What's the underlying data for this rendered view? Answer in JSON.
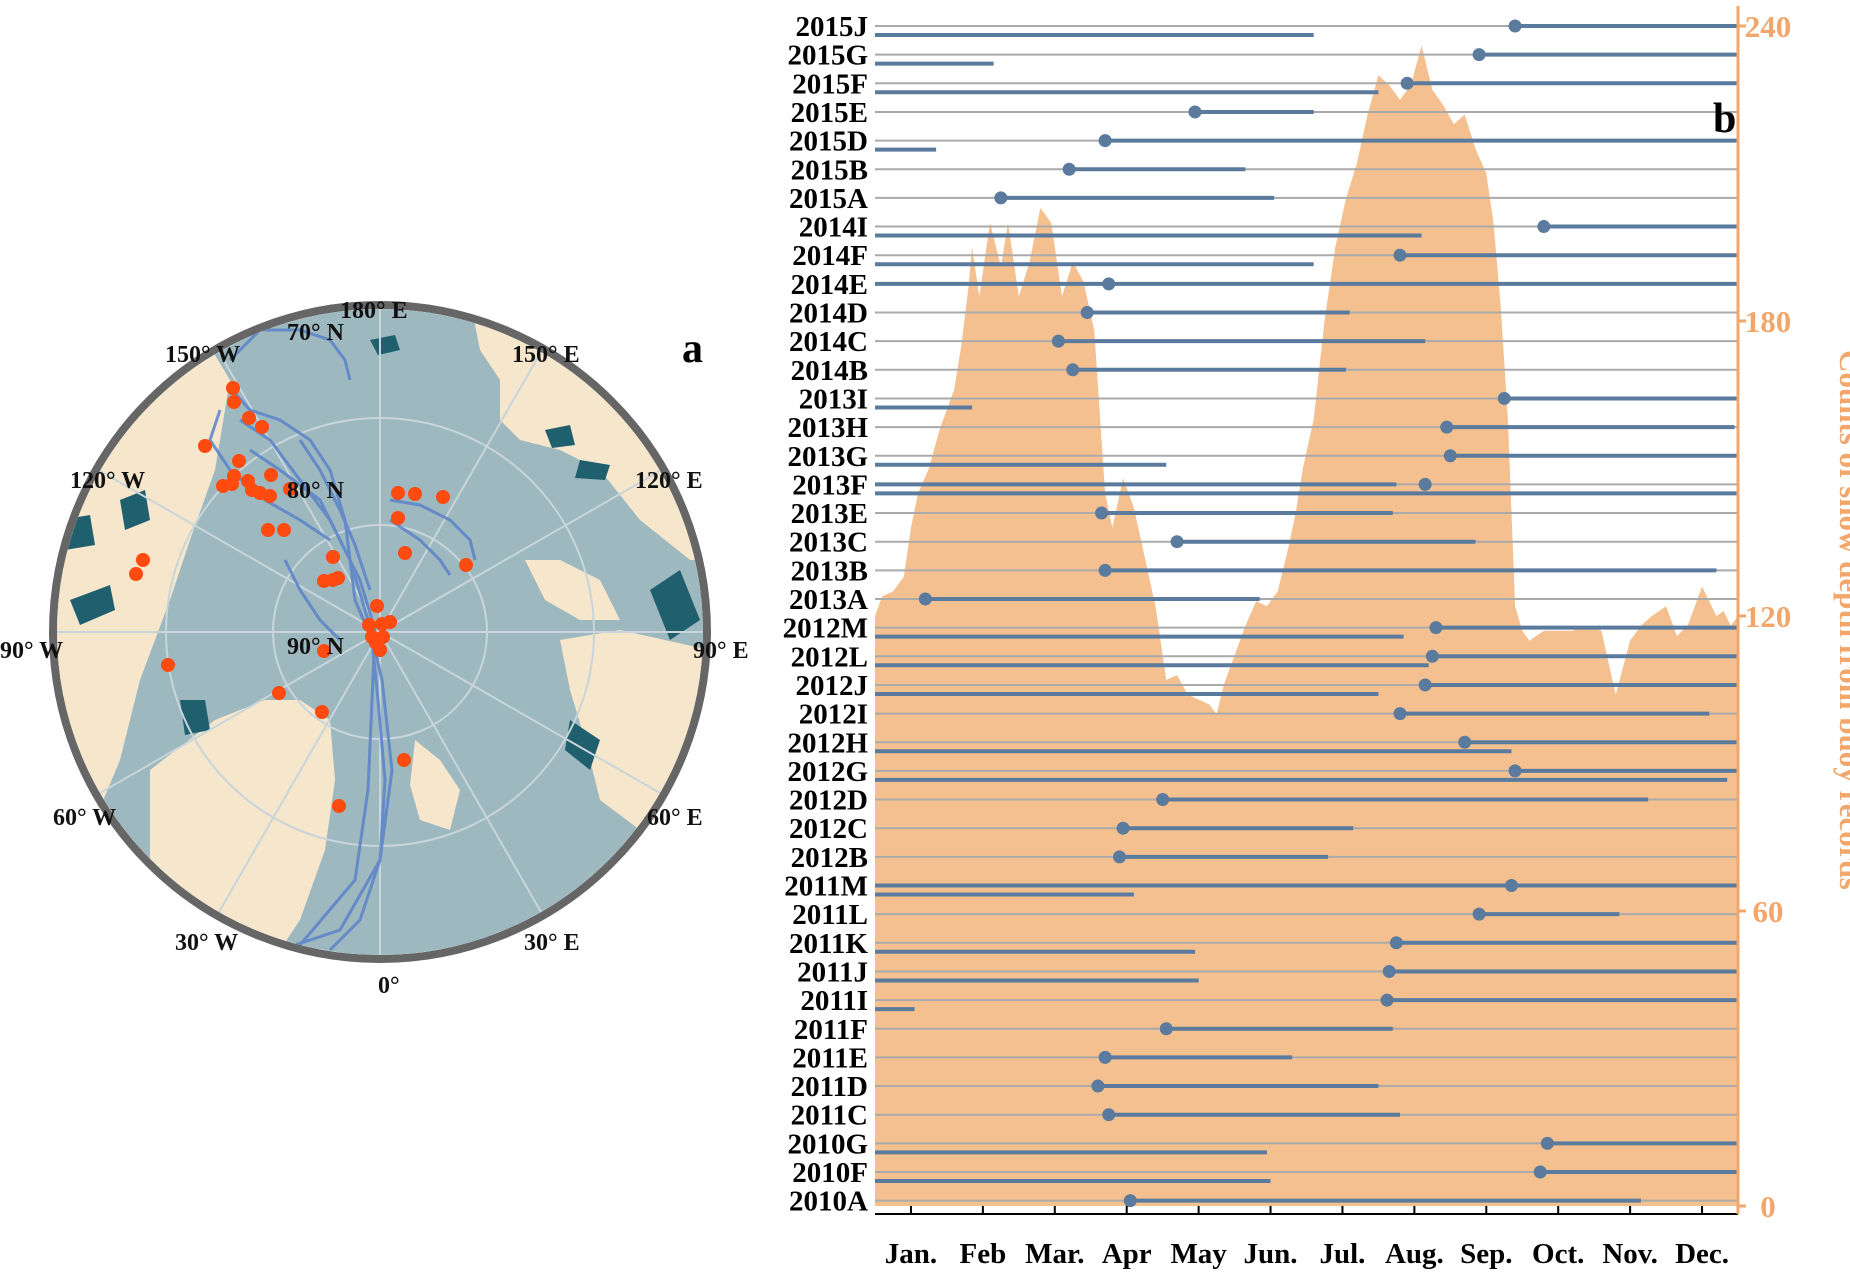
{
  "panel_a": {
    "label": "a",
    "labels": {
      "deg180": "180° E",
      "deg150w": "150° W",
      "deg150e": "150° E",
      "deg120w": "120° W",
      "deg120e": "120° E",
      "deg90w": "90° W",
      "deg90e": "90° E",
      "deg60w": "60° W",
      "deg60e": "60° E",
      "deg30w": "30° W",
      "deg30e": "30° E",
      "deg0": "0°",
      "lat70": "70° N",
      "lat80": "80° N",
      "lat90": "90° N"
    },
    "colors": {
      "ocean": "#9DB8BF",
      "land": "#F5E6CC",
      "ice": "#1F5F6E",
      "track": "#5B82C9",
      "start": "#FF4A10",
      "rim": "#666666"
    }
  },
  "panel_b": {
    "label": "b",
    "colors": {
      "area": "#F5C090",
      "bar": "#5A7A9E",
      "grid": "#AAAAAA",
      "axis_right": "#F2A66A"
    }
  },
  "chart_data": [
    {
      "type": "timeline",
      "title": "",
      "xlabel": "",
      "ylabel": "",
      "months": [
        "Jan.",
        "Feb",
        "Mar.",
        "Apr",
        "May",
        "Jun.",
        "Jul.",
        "Aug.",
        "Sep.",
        "Oct.",
        "Nov.",
        "Dec."
      ],
      "xlim": [
        0,
        12
      ],
      "buoys": [
        {
          "name": "2015J",
          "segments": [
            [
              0,
              6.1
            ],
            [
              8.9,
              12
            ]
          ],
          "start": 8.9
        },
        {
          "name": "2015G",
          "segments": [
            [
              0,
              1.65
            ],
            [
              8.4,
              12
            ]
          ],
          "start": 8.4
        },
        {
          "name": "2015F",
          "segments": [
            [
              0,
              7.0
            ],
            [
              7.4,
              12
            ]
          ],
          "start": 7.4
        },
        {
          "name": "2015E",
          "segments": [
            [
              4.45,
              6.1
            ]
          ],
          "start": 4.45
        },
        {
          "name": "2015D",
          "segments": [
            [
              0,
              0.85
            ],
            [
              3.2,
              12
            ]
          ],
          "start": 3.2
        },
        {
          "name": "2015B",
          "segments": [
            [
              2.7,
              5.15
            ]
          ],
          "start": 2.7
        },
        {
          "name": "2015A",
          "segments": [
            [
              1.75,
              5.55
            ]
          ],
          "start": 1.75
        },
        {
          "name": "2014I",
          "segments": [
            [
              0,
              7.6
            ],
            [
              9.3,
              12
            ]
          ],
          "start": 9.3
        },
        {
          "name": "2014F",
          "segments": [
            [
              0,
              6.1
            ],
            [
              7.3,
              12
            ]
          ],
          "start": 7.3
        },
        {
          "name": "2014E",
          "segments": [
            [
              0,
              12
            ]
          ],
          "start": 3.25
        },
        {
          "name": "2014D",
          "segments": [
            [
              2.95,
              6.6
            ]
          ],
          "start": 2.95
        },
        {
          "name": "2014C",
          "segments": [
            [
              2.55,
              7.65
            ]
          ],
          "start": 2.55
        },
        {
          "name": "2014B",
          "segments": [
            [
              2.75,
              6.55
            ]
          ],
          "start": 2.75
        },
        {
          "name": "2013I",
          "segments": [
            [
              0,
              1.35
            ],
            [
              8.75,
              12
            ]
          ],
          "start": 8.75
        },
        {
          "name": "2013H",
          "segments": [
            [
              7.95,
              11.95
            ]
          ],
          "start": 7.95
        },
        {
          "name": "2013G",
          "segments": [
            [
              0,
              4.05
            ],
            [
              8.0,
              12
            ]
          ],
          "start": 8.0
        },
        {
          "name": "2013F",
          "segments": [
            [
              0,
              12
            ],
            [
              0,
              7.25
            ]
          ],
          "start": 7.65
        },
        {
          "name": "2013E",
          "segments": [
            [
              3.15,
              7.2
            ]
          ],
          "start": 3.15
        },
        {
          "name": "2013C",
          "segments": [
            [
              4.2,
              8.35
            ]
          ],
          "start": 4.2
        },
        {
          "name": "2013B",
          "segments": [
            [
              3.2,
              11.7
            ]
          ],
          "start": 3.2
        },
        {
          "name": "2013A",
          "segments": [
            [
              0.7,
              5.35
            ]
          ],
          "start": 0.7
        },
        {
          "name": "2012M",
          "segments": [
            [
              0,
              7.35
            ],
            [
              7.8,
              12
            ]
          ],
          "start": 7.8
        },
        {
          "name": "2012L",
          "segments": [
            [
              0,
              7.7
            ],
            [
              7.75,
              12
            ]
          ],
          "start": 7.75
        },
        {
          "name": "2012J",
          "segments": [
            [
              0,
              7.0
            ],
            [
              7.65,
              12
            ]
          ],
          "start": 7.65
        },
        {
          "name": "2012I",
          "segments": [
            [
              7.3,
              11.6
            ]
          ],
          "start": 7.3
        },
        {
          "name": "2012H",
          "segments": [
            [
              0,
              8.85
            ],
            [
              8.2,
              12
            ]
          ],
          "start": 8.2
        },
        {
          "name": "2012G",
          "segments": [
            [
              0,
              11.85
            ],
            [
              8.9,
              12
            ]
          ],
          "start": 8.9
        },
        {
          "name": "2012D",
          "segments": [
            [
              4.0,
              10.75
            ]
          ],
          "start": 4.0
        },
        {
          "name": "2012C",
          "segments": [
            [
              3.45,
              6.65
            ]
          ],
          "start": 3.45
        },
        {
          "name": "2012B",
          "segments": [
            [
              3.4,
              6.3
            ]
          ],
          "start": 3.4
        },
        {
          "name": "2011M",
          "segments": [
            [
              0,
              3.6
            ],
            [
              0,
              12
            ]
          ],
          "start": 8.85
        },
        {
          "name": "2011L",
          "segments": [
            [
              8.4,
              10.35
            ]
          ],
          "start": 8.4
        },
        {
          "name": "2011K",
          "segments": [
            [
              0,
              4.45
            ],
            [
              7.25,
              12
            ]
          ],
          "start": 7.25
        },
        {
          "name": "2011J",
          "segments": [
            [
              0,
              4.5
            ],
            [
              7.15,
              12
            ]
          ],
          "start": 7.15
        },
        {
          "name": "2011I",
          "segments": [
            [
              0,
              0.55
            ],
            [
              7.12,
              12
            ]
          ],
          "start": 7.12
        },
        {
          "name": "2011F",
          "segments": [
            [
              4.05,
              7.2
            ]
          ],
          "start": 4.05
        },
        {
          "name": "2011E",
          "segments": [
            [
              3.2,
              5.8
            ]
          ],
          "start": 3.2
        },
        {
          "name": "2011D",
          "segments": [
            [
              3.1,
              7.0
            ]
          ],
          "start": 3.1
        },
        {
          "name": "2011C",
          "segments": [
            [
              3.25,
              7.3
            ]
          ],
          "start": 3.25
        },
        {
          "name": "2010G",
          "segments": [
            [
              0,
              5.45
            ],
            [
              9.35,
              12
            ]
          ],
          "start": 9.35
        },
        {
          "name": "2010F",
          "segments": [
            [
              0,
              5.5
            ],
            [
              9.25,
              12
            ]
          ],
          "start": 9.25
        },
        {
          "name": "2010A",
          "segments": [
            [
              3.55,
              10.65
            ]
          ],
          "start": 3.55
        }
      ]
    },
    {
      "type": "area",
      "title": "",
      "xlabel": "",
      "ylabel": "Counts of snow depth from buoy records",
      "ylim": [
        0,
        240
      ],
      "yticks": [
        0,
        60,
        120,
        180,
        240
      ],
      "x": [
        0,
        0.1,
        0.25,
        0.4,
        0.5,
        0.6,
        0.75,
        0.9,
        1.0,
        1.1,
        1.2,
        1.3,
        1.35,
        1.45,
        1.6,
        1.75,
        1.85,
        2.0,
        2.15,
        2.3,
        2.45,
        2.6,
        2.75,
        2.9,
        3.05,
        3.2,
        3.3,
        3.45,
        3.6,
        3.75,
        3.9,
        4.05,
        4.2,
        4.35,
        4.5,
        4.65,
        4.75,
        4.85,
        5.0,
        5.15,
        5.3,
        5.45,
        5.6,
        5.75,
        5.85,
        5.95,
        6.1,
        6.25,
        6.4,
        6.55,
        6.7,
        6.85,
        7.0,
        7.15,
        7.3,
        7.45,
        7.6,
        7.75,
        7.9,
        8.05,
        8.2,
        8.35,
        8.5,
        8.6,
        8.7,
        8.8,
        8.9,
        9.0,
        9.1,
        9.3,
        9.5,
        9.7,
        9.9,
        10.1,
        10.3,
        10.5,
        10.65,
        10.8,
        11.0,
        11.15,
        11.3,
        11.5,
        11.6,
        11.7,
        11.8,
        11.9,
        12.0
      ],
      "values": [
        120,
        124,
        125,
        128,
        138,
        145,
        150,
        158,
        162,
        166,
        175,
        187,
        195,
        185,
        200,
        191,
        200,
        185,
        192,
        203,
        200,
        185,
        192,
        188,
        178,
        145,
        138,
        148,
        142,
        132,
        122,
        107,
        108,
        104,
        103,
        102,
        100,
        106,
        112,
        118,
        123,
        122,
        125,
        134,
        141,
        150,
        160,
        180,
        195,
        205,
        212,
        222,
        230,
        228,
        225,
        228,
        236,
        227,
        224,
        220,
        222,
        215,
        210,
        200,
        183,
        160,
        122,
        117,
        115,
        117,
        117,
        117,
        118,
        117,
        104,
        115,
        118,
        120,
        122,
        116,
        118,
        126,
        123,
        120,
        121,
        118,
        120
      ]
    }
  ]
}
